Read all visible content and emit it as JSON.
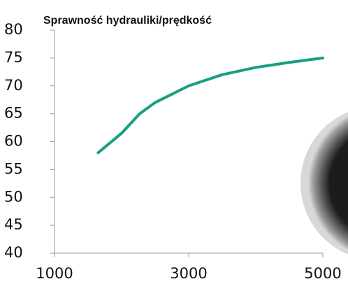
{
  "chart_data": {
    "type": "line",
    "title": "Sprawność hydrauliki/prędkość",
    "x": [
      1650,
      2000,
      2270,
      2500,
      3000,
      3500,
      4000,
      4500,
      5000
    ],
    "series": [
      {
        "name": null,
        "color": "#1a9e80",
        "values": [
          58,
          61.5,
          65,
          67,
          70,
          72,
          73.3,
          74.2,
          75
        ]
      }
    ],
    "xlim": [
      1000,
      5000
    ],
    "xticks": [
      1000,
      3000,
      5000
    ],
    "ylim": [
      40,
      80
    ],
    "yticks": [
      40,
      45,
      50,
      55,
      60,
      65,
      70,
      75,
      80
    ]
  }
}
